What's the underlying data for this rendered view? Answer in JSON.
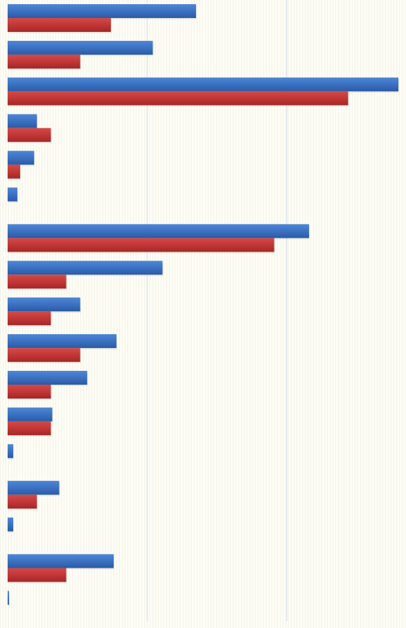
{
  "chart_data": {
    "type": "bar",
    "orientation": "horizontal",
    "title": "",
    "xlabel": "",
    "ylabel": "",
    "xlim": [
      0,
      28
    ],
    "gridlines_x": [
      10,
      20
    ],
    "grid": true,
    "legend": "none",
    "categories": [
      "",
      "",
      "",
      "",
      "",
      "",
      "",
      "",
      "",
      "",
      "",
      "",
      "",
      "",
      "",
      "",
      ""
    ],
    "series": [
      {
        "color": "#3a6fbf",
        "values": [
          13.5,
          10.4,
          28.0,
          2.1,
          1.9,
          0.7,
          21.6,
          11.1,
          5.2,
          7.8,
          5.7,
          3.2,
          0.4,
          3.7,
          0.4,
          7.6,
          0.1
        ]
      },
      {
        "color": "#c03535",
        "values": [
          7.4,
          5.2,
          24.4,
          3.1,
          0.9,
          null,
          19.1,
          4.2,
          3.1,
          5.2,
          3.1,
          3.1,
          null,
          2.1,
          null,
          4.2,
          null
        ]
      }
    ]
  }
}
